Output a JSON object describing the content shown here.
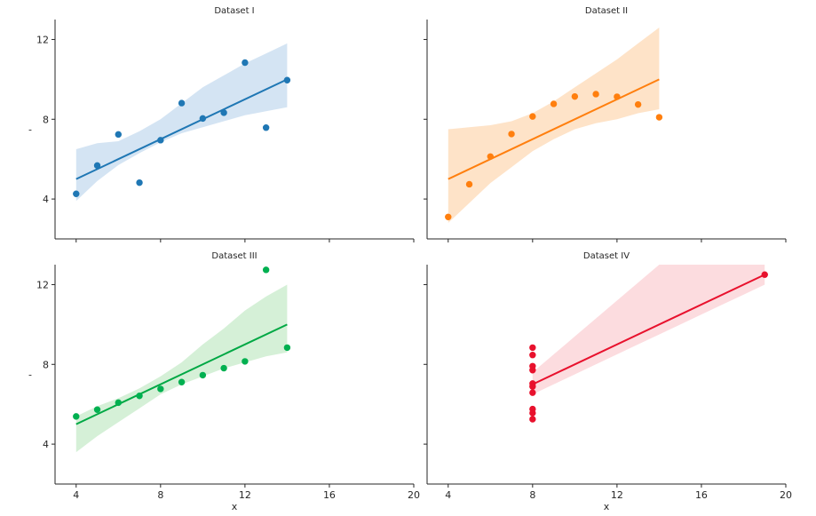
{
  "chart_data": [
    {
      "type": "scatter",
      "title": "Dataset I",
      "xlabel": "",
      "ylabel": "-",
      "xlim": [
        3,
        20
      ],
      "ylim": [
        2,
        13
      ],
      "xticks": [
        "4",
        "8",
        "12",
        "16",
        "20"
      ],
      "yticks": [
        "4",
        "8",
        "12"
      ],
      "show_x_ticklabels": false,
      "show_y_ticklabels": true,
      "color": "#1f77b4",
      "line_color": "#1f77b4",
      "band_color": "#c6dbef",
      "points": [
        [
          4,
          4.26
        ],
        [
          5,
          5.68
        ],
        [
          6,
          7.24
        ],
        [
          7,
          4.82
        ],
        [
          8,
          6.95
        ],
        [
          9,
          8.81
        ],
        [
          10,
          8.04
        ],
        [
          11,
          8.33
        ],
        [
          12,
          10.84
        ],
        [
          13,
          7.58
        ],
        [
          14,
          9.96
        ]
      ],
      "fit": {
        "x": [
          4,
          14
        ],
        "y": [
          5.0,
          10.0
        ]
      },
      "ci_band": [
        [
          4,
          3.9,
          6.5
        ],
        [
          5,
          4.9,
          6.8
        ],
        [
          6,
          5.7,
          6.9
        ],
        [
          7,
          6.3,
          7.4
        ],
        [
          8,
          6.85,
          8.0
        ],
        [
          9,
          7.3,
          8.8
        ],
        [
          10,
          7.6,
          9.6
        ],
        [
          11,
          7.9,
          10.2
        ],
        [
          12,
          8.2,
          10.8
        ],
        [
          13,
          8.4,
          11.3
        ],
        [
          14,
          8.6,
          11.8
        ]
      ]
    },
    {
      "type": "scatter",
      "title": "Dataset II",
      "xlabel": "",
      "ylabel": "",
      "xlim": [
        3,
        20
      ],
      "ylim": [
        2,
        13
      ],
      "xticks": [
        "4",
        "8",
        "12",
        "16",
        "20"
      ],
      "yticks": [
        "4",
        "8",
        "12"
      ],
      "show_x_ticklabels": false,
      "show_y_ticklabels": false,
      "color": "#ff7f0e",
      "line_color": "#ff7f0e",
      "band_color": "#fdd9b5",
      "points": [
        [
          4,
          3.1
        ],
        [
          5,
          4.74
        ],
        [
          6,
          6.13
        ],
        [
          7,
          7.26
        ],
        [
          8,
          8.14
        ],
        [
          9,
          8.77
        ],
        [
          10,
          9.14
        ],
        [
          11,
          9.26
        ],
        [
          12,
          9.13
        ],
        [
          13,
          8.74
        ],
        [
          14,
          8.1
        ]
      ],
      "fit": {
        "x": [
          4,
          14
        ],
        "y": [
          5.0,
          10.0
        ]
      },
      "ci_band": [
        [
          4,
          2.8,
          7.5
        ],
        [
          5,
          3.8,
          7.6
        ],
        [
          6,
          4.8,
          7.7
        ],
        [
          7,
          5.6,
          7.9
        ],
        [
          8,
          6.4,
          8.3
        ],
        [
          9,
          7.0,
          8.9
        ],
        [
          10,
          7.5,
          9.6
        ],
        [
          11,
          7.8,
          10.3
        ],
        [
          12,
          8.0,
          11.0
        ],
        [
          13,
          8.3,
          11.8
        ],
        [
          14,
          8.5,
          12.6
        ]
      ]
    },
    {
      "type": "scatter",
      "title": "Dataset III",
      "xlabel": "x",
      "ylabel": "-",
      "xlim": [
        3,
        20
      ],
      "ylim": [
        2,
        13
      ],
      "xticks": [
        "4",
        "8",
        "12",
        "16",
        "20"
      ],
      "yticks": [
        "4",
        "8",
        "12"
      ],
      "show_x_ticklabels": true,
      "show_y_ticklabels": true,
      "color": "#00b050",
      "line_color": "#00a844",
      "band_color": "#c7ebc9",
      "points": [
        [
          4,
          5.39
        ],
        [
          5,
          5.73
        ],
        [
          6,
          6.08
        ],
        [
          7,
          6.42
        ],
        [
          8,
          6.77
        ],
        [
          9,
          7.11
        ],
        [
          10,
          7.46
        ],
        [
          11,
          7.81
        ],
        [
          12,
          8.15
        ],
        [
          13,
          12.74
        ],
        [
          14,
          8.84
        ]
      ],
      "fit": {
        "x": [
          4,
          14
        ],
        "y": [
          5.0,
          10.0
        ]
      },
      "ci_band": [
        [
          4,
          3.6,
          5.4
        ],
        [
          5,
          4.4,
          5.9
        ],
        [
          6,
          5.1,
          6.3
        ],
        [
          7,
          5.8,
          6.8
        ],
        [
          8,
          6.5,
          7.4
        ],
        [
          9,
          7.0,
          8.1
        ],
        [
          10,
          7.4,
          9.0
        ],
        [
          11,
          7.8,
          9.8
        ],
        [
          12,
          8.1,
          10.7
        ],
        [
          13,
          8.4,
          11.4
        ],
        [
          14,
          8.6,
          12.0
        ]
      ]
    },
    {
      "type": "scatter",
      "title": "Dataset IV",
      "xlabel": "x",
      "ylabel": "",
      "xlim": [
        3,
        20
      ],
      "ylim": [
        2,
        13
      ],
      "xticks": [
        "4",
        "8",
        "12",
        "16",
        "20"
      ],
      "yticks": [
        "4",
        "8",
        "12"
      ],
      "show_x_ticklabels": true,
      "show_y_ticklabels": false,
      "color": "#e8112d",
      "line_color": "#e8112d",
      "band_color": "#fbd0d4",
      "points": [
        [
          8,
          6.58
        ],
        [
          8,
          5.76
        ],
        [
          8,
          7.71
        ],
        [
          8,
          8.84
        ],
        [
          8,
          8.47
        ],
        [
          8,
          7.04
        ],
        [
          8,
          5.25
        ],
        [
          19,
          12.5
        ],
        [
          8,
          5.56
        ],
        [
          8,
          7.91
        ],
        [
          8,
          6.89
        ]
      ],
      "fit": {
        "x": [
          8,
          19
        ],
        "y": [
          7.0,
          12.5
        ]
      },
      "ci_band": [
        [
          8,
          6.5,
          7.6
        ],
        [
          9,
          7.0,
          8.5
        ],
        [
          10,
          7.5,
          9.4
        ],
        [
          11,
          8.0,
          10.3
        ],
        [
          12,
          8.5,
          11.2
        ],
        [
          13,
          9.0,
          12.1
        ],
        [
          14,
          9.5,
          13.0
        ],
        [
          15,
          10.0,
          13.9
        ],
        [
          16,
          10.5,
          14.8
        ],
        [
          17,
          11.0,
          15.7
        ],
        [
          18,
          11.5,
          16.6
        ],
        [
          19,
          12.0,
          17.5
        ]
      ]
    }
  ]
}
